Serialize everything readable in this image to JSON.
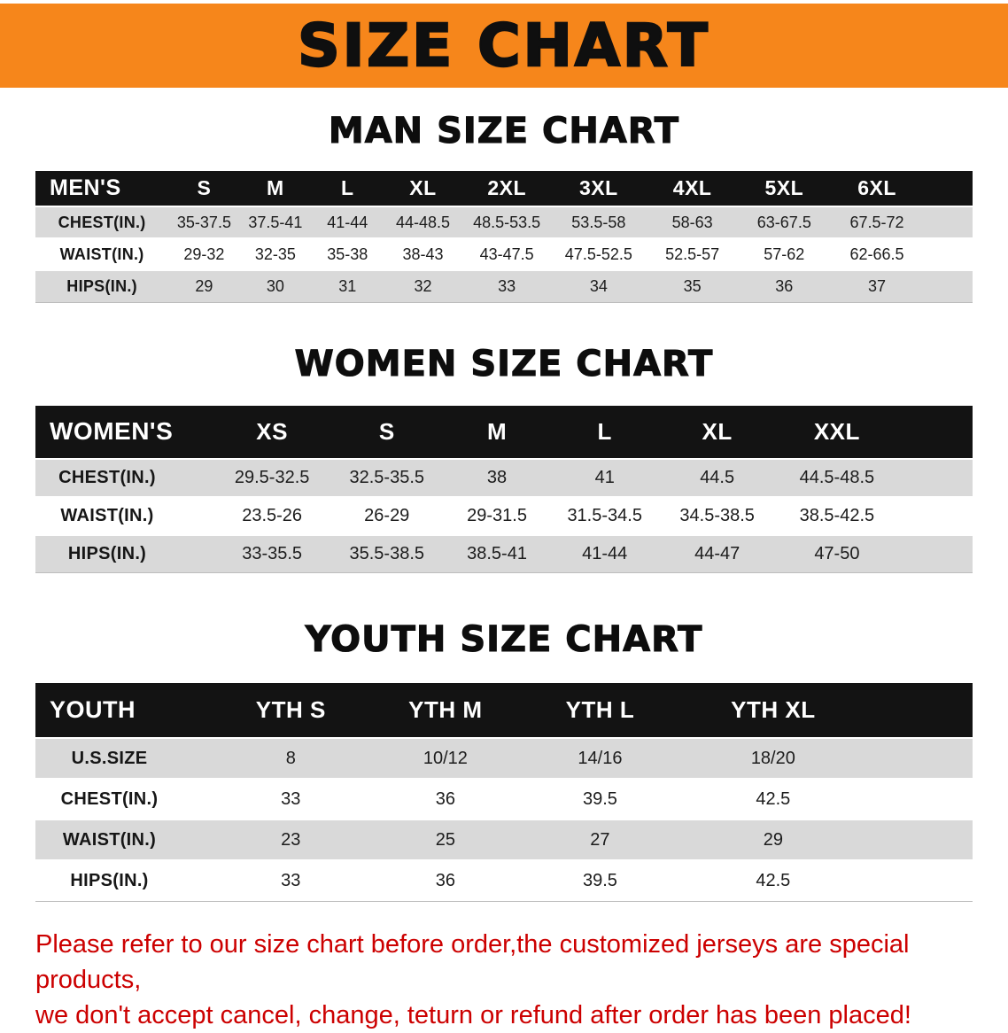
{
  "banner": {
    "title": "SIZE CHART"
  },
  "colors": {
    "banner_bg": "#f6861b",
    "table_header_bg": "#131313",
    "shaded_row_bg": "#d9d9d9",
    "notice_text": "#cc0000"
  },
  "sections": [
    {
      "heading": "MAN SIZE CHART",
      "table": {
        "header": [
          "MEN'S",
          "S",
          "M",
          "L",
          "XL",
          "2XL",
          "3XL",
          "4XL",
          "5XL",
          "6XL"
        ],
        "rows": [
          [
            "CHEST(IN.)",
            "35-37.5",
            "37.5-41",
            "41-44",
            "44-48.5",
            "48.5-53.5",
            "53.5-58",
            "58-63",
            "63-67.5",
            "67.5-72"
          ],
          [
            "WAIST(IN.)",
            "29-32",
            "32-35",
            "35-38",
            "38-43",
            "43-47.5",
            "47.5-52.5",
            "52.5-57",
            "57-62",
            "62-66.5"
          ],
          [
            "HIPS(IN.)",
            "29",
            "30",
            "31",
            "32",
            "33",
            "34",
            "35",
            "36",
            "37"
          ]
        ]
      }
    },
    {
      "heading": "WOMEN SIZE CHART",
      "table": {
        "header": [
          "WOMEN'S",
          "XS",
          "S",
          "M",
          "L",
          "XL",
          "XXL"
        ],
        "rows": [
          [
            "CHEST(IN.)",
            "29.5-32.5",
            "32.5-35.5",
            "38",
            "41",
            "44.5",
            "44.5-48.5"
          ],
          [
            "WAIST(IN.)",
            "23.5-26",
            "26-29",
            "29-31.5",
            "31.5-34.5",
            "34.5-38.5",
            "38.5-42.5"
          ],
          [
            "HIPS(IN.)",
            "33-35.5",
            "35.5-38.5",
            "38.5-41",
            "41-44",
            "44-47",
            "47-50"
          ]
        ]
      }
    },
    {
      "heading": "YOUTH SIZE CHART",
      "table": {
        "header": [
          "YOUTH",
          "YTH S",
          "YTH M",
          "YTH L",
          "YTH XL"
        ],
        "rows": [
          [
            "U.S.SIZE",
            "8",
            "10/12",
            "14/16",
            "18/20"
          ],
          [
            "CHEST(IN.)",
            "33",
            "36",
            "39.5",
            "42.5"
          ],
          [
            "WAIST(IN.)",
            "23",
            "25",
            "27",
            "29"
          ],
          [
            "HIPS(IN.)",
            "33",
            "36",
            "39.5",
            "42.5"
          ]
        ]
      }
    }
  ],
  "footer": {
    "lines": [
      "Please refer to our size chart before order,the customized jerseys are special products,",
      "we don't accept cancel, change, teturn or refund after order has been placed!"
    ]
  }
}
